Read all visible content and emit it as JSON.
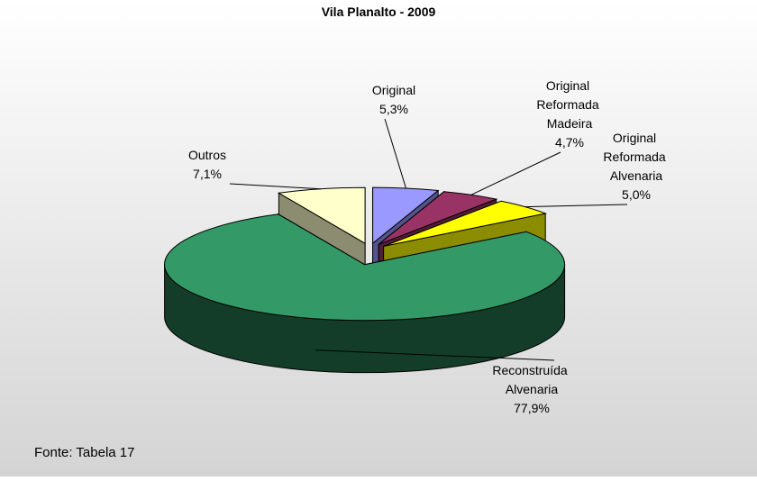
{
  "chart_data": {
    "type": "pie3d",
    "title": "Vila Planalto - 2009",
    "categories": [
      "Original",
      "Original Reformada Madeira",
      "Original Reformada Alvenaria",
      "Reconstruída Alvenaria",
      "Outros"
    ],
    "values": [
      5.3,
      4.7,
      5.0,
      77.9,
      7.1
    ],
    "value_labels": [
      "5,3%",
      "4,7%",
      "5,0%",
      "77,9%",
      "7,1%"
    ],
    "colors": [
      "#9999ff",
      "#993366",
      "#ffff00",
      "#339966",
      "#ffffcc"
    ],
    "note": "Fonte: Tabela 17"
  }
}
